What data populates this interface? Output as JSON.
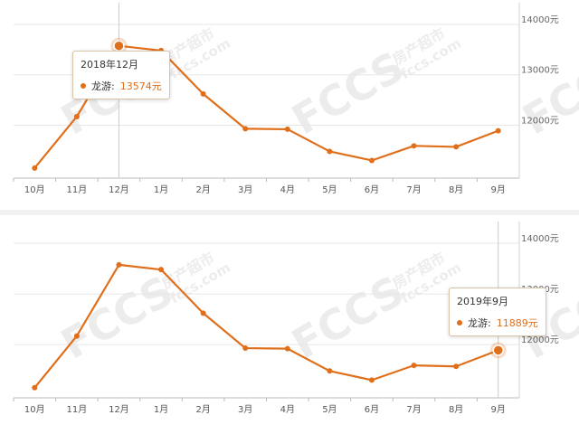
{
  "chart_data": [
    {
      "type": "line",
      "categories": [
        "10月",
        "11月",
        "12月",
        "1月",
        "2月",
        "3月",
        "4月",
        "5月",
        "6月",
        "7月",
        "8月",
        "9月"
      ],
      "series": [
        {
          "name": "龙游",
          "values": [
            11150,
            12170,
            13574,
            13480,
            12620,
            11930,
            11920,
            11480,
            11300,
            11590,
            11570,
            11889
          ]
        }
      ],
      "yticks": [
        "12000元",
        "13000元",
        "14000元"
      ],
      "ylim": [
        10950,
        14250
      ],
      "color": "#e06f1b",
      "grid": true,
      "tooltip": {
        "title": "2018年12月",
        "series": "龙游:",
        "value": "13574元",
        "index": 2
      }
    },
    {
      "type": "line",
      "categories": [
        "10月",
        "11月",
        "12月",
        "1月",
        "2月",
        "3月",
        "4月",
        "5月",
        "6月",
        "7月",
        "8月",
        "9月"
      ],
      "series": [
        {
          "name": "龙游",
          "values": [
            11150,
            12170,
            13574,
            13480,
            12620,
            11930,
            11920,
            11480,
            11300,
            11590,
            11570,
            11889
          ]
        }
      ],
      "yticks": [
        "12000元",
        "13000元",
        "14000元"
      ],
      "ylim": [
        10950,
        14250
      ],
      "color": "#e06f1b",
      "grid": true,
      "tooltip": {
        "title": "2019年9月",
        "series": "龙游:",
        "value": "11889元",
        "index": 11
      }
    }
  ],
  "watermark": {
    "logo": "FCCS",
    "cn": "房产超市",
    "url": "fccs.com"
  }
}
